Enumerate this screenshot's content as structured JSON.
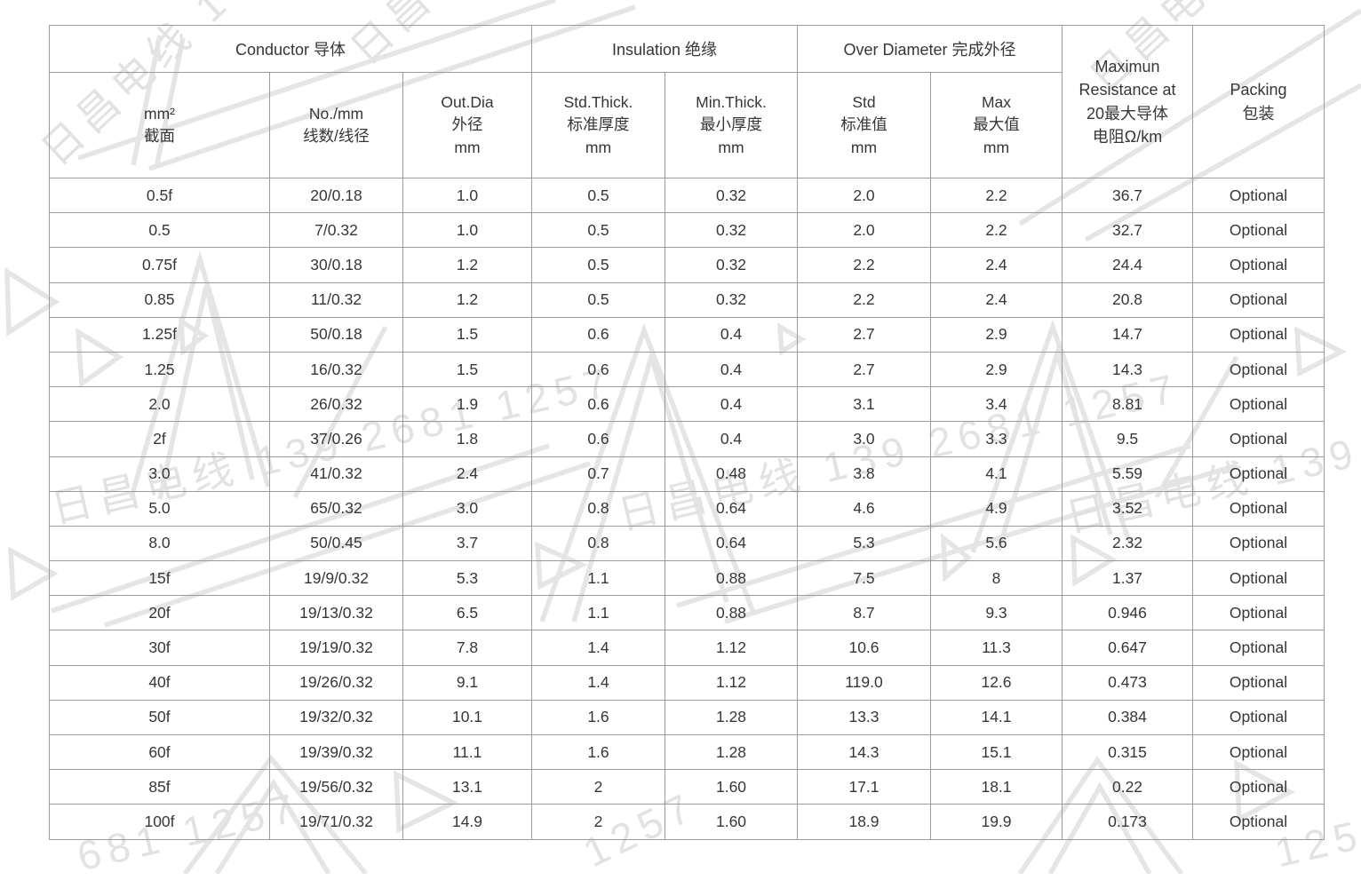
{
  "watermark": {
    "company_phone": "日昌电线 139 2681 1257",
    "fragment_681": "681 1257",
    "fragment_1257": "1257",
    "color": "#e2e2e2"
  },
  "table": {
    "groups": {
      "conductor": "Conductor 导体",
      "insulation": "Insulation 绝缘",
      "over_diameter": "Over Diameter 完成外径",
      "max_resistance": "Maximun\nResistance at\n20最大导体\n电阻Ω/km",
      "packing": "Packing\n包装"
    },
    "sub_headers": [
      "mm²\n截面",
      "No./mm\n线数/线径",
      "Out.Dia\n外径\nmm",
      "Std.Thick.\n标准厚度\nmm",
      "Min.Thick.\n最小厚度\nmm",
      "Std\n标准值\nmm",
      "Max\n最大值\nmm"
    ],
    "columns": [
      "mm2_section",
      "strands_per_dia",
      "out_dia_mm",
      "std_thick_mm",
      "min_thick_mm",
      "od_std_mm",
      "od_max_mm",
      "max_resistance_ohm_km",
      "packing"
    ],
    "rows": [
      [
        "0.5f",
        "20/0.18",
        "1.0",
        "0.5",
        "0.32",
        "2.0",
        "2.2",
        "36.7",
        "Optional"
      ],
      [
        "0.5",
        "7/0.32",
        "1.0",
        "0.5",
        "0.32",
        "2.0",
        "2.2",
        "32.7",
        "Optional"
      ],
      [
        "0.75f",
        "30/0.18",
        "1.2",
        "0.5",
        "0.32",
        "2.2",
        "2.4",
        "24.4",
        "Optional"
      ],
      [
        "0.85",
        "11/0.32",
        "1.2",
        "0.5",
        "0.32",
        "2.2",
        "2.4",
        "20.8",
        "Optional"
      ],
      [
        "1.25f",
        "50/0.18",
        "1.5",
        "0.6",
        "0.4",
        "2.7",
        "2.9",
        "14.7",
        "Optional"
      ],
      [
        "1.25",
        "16/0.32",
        "1.5",
        "0.6",
        "0.4",
        "2.7",
        "2.9",
        "14.3",
        "Optional"
      ],
      [
        "2.0",
        "26/0.32",
        "1.9",
        "0.6",
        "0.4",
        "3.1",
        "3.4",
        "8.81",
        "Optional"
      ],
      [
        "2f",
        "37/0.26",
        "1.8",
        "0.6",
        "0.4",
        "3.0",
        "3.3",
        "9.5",
        "Optional"
      ],
      [
        "3.0",
        "41/0.32",
        "2.4",
        "0.7",
        "0.48",
        "3.8",
        "4.1",
        "5.59",
        "Optional"
      ],
      [
        "5.0",
        "65/0.32",
        "3.0",
        "0.8",
        "0.64",
        "4.6",
        "4.9",
        "3.52",
        "Optional"
      ],
      [
        "8.0",
        "50/0.45",
        "3.7",
        "0.8",
        "0.64",
        "5.3",
        "5.6",
        "2.32",
        "Optional"
      ],
      [
        "15f",
        "19/9/0.32",
        "5.3",
        "1.1",
        "0.88",
        "7.5",
        "8",
        "1.37",
        "Optional"
      ],
      [
        "20f",
        "19/13/0.32",
        "6.5",
        "1.1",
        "0.88",
        "8.7",
        "9.3",
        "0.946",
        "Optional"
      ],
      [
        "30f",
        "19/19/0.32",
        "7.8",
        "1.4",
        "1.12",
        "10.6",
        "11.3",
        "0.647",
        "Optional"
      ],
      [
        "40f",
        "19/26/0.32",
        "9.1",
        "1.4",
        "1.12",
        "119.0",
        "12.6",
        "0.473",
        "Optional"
      ],
      [
        "50f",
        "19/32/0.32",
        "10.1",
        "1.6",
        "1.28",
        "13.3",
        "14.1",
        "0.384",
        "Optional"
      ],
      [
        "60f",
        "19/39/0.32",
        "11.1",
        "1.6",
        "1.28",
        "14.3",
        "15.1",
        "0.315",
        "Optional"
      ],
      [
        "85f",
        "19/56/0.32",
        "13.1",
        "2",
        "1.60",
        "17.1",
        "18.1",
        "0.22",
        "Optional"
      ],
      [
        "100f",
        "19/71/0.32",
        "14.9",
        "2",
        "1.60",
        "18.9",
        "19.9",
        "0.173",
        "Optional"
      ]
    ]
  }
}
